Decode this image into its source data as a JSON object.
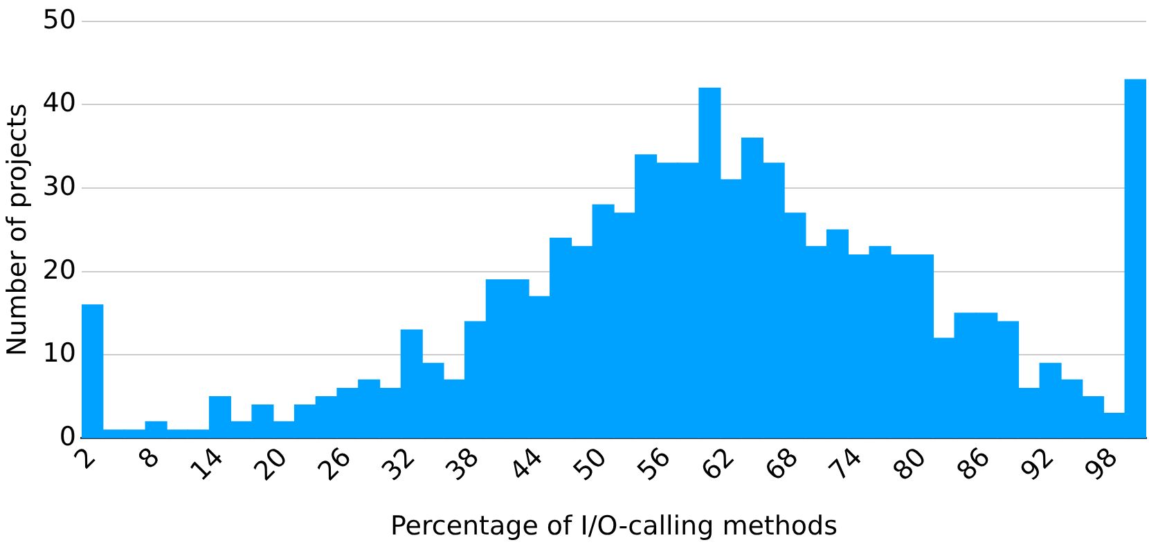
{
  "chart_data": {
    "type": "histogram",
    "xlabel": "Percentage of I/O-calling methods",
    "ylabel": "Number of projects",
    "bins": [
      1,
      3,
      5,
      7,
      9,
      11,
      13,
      15,
      17,
      19,
      21,
      23,
      25,
      27,
      29,
      31,
      33,
      35,
      37,
      39,
      41,
      43,
      45,
      47,
      49,
      51,
      53,
      55,
      57,
      59,
      61,
      63,
      65,
      67,
      69,
      71,
      73,
      75,
      77,
      79,
      81,
      83,
      85,
      87,
      89,
      91,
      93,
      95,
      97,
      99,
      101
    ],
    "values": [
      16,
      1,
      1,
      2,
      1,
      1,
      5,
      2,
      4,
      2,
      4,
      5,
      6,
      7,
      6,
      13,
      9,
      7,
      14,
      19,
      19,
      17,
      24,
      23,
      28,
      27,
      34,
      33,
      33,
      42,
      31,
      36,
      33,
      27,
      23,
      25,
      22,
      23,
      22,
      22,
      12,
      15,
      15,
      14,
      6,
      9,
      7,
      5,
      3,
      43
    ],
    "color": "#00a2ff",
    "xlim": [
      1,
      101
    ],
    "xticks": [
      2,
      8,
      14,
      20,
      26,
      32,
      38,
      44,
      50,
      56,
      62,
      68,
      74,
      80,
      86,
      92,
      98
    ],
    "ylim": [
      0,
      50
    ],
    "yticks": [
      0,
      10,
      20,
      30,
      40,
      50
    ],
    "grid": "y"
  }
}
